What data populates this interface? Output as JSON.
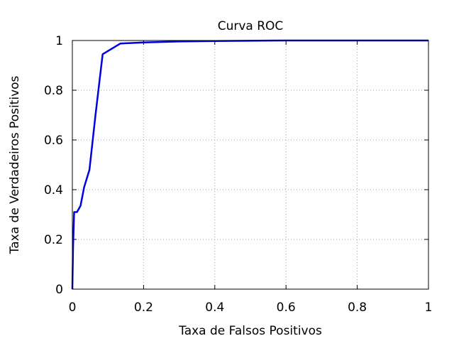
{
  "chart_data": {
    "type": "line",
    "title": "Curva ROC",
    "xlabel": "Taxa de Falsos Positivos",
    "ylabel": "Taxa de Verdadeiros Positivos",
    "xlim": [
      0,
      1
    ],
    "ylim": [
      0,
      1
    ],
    "xticks": [
      0,
      0.2,
      0.4,
      0.6,
      0.8,
      1
    ],
    "yticks": [
      0,
      0.2,
      0.4,
      0.6,
      0.8,
      1
    ],
    "xtick_labels": [
      "0",
      "0.2",
      "0.4",
      "0.6",
      "0.8",
      "1"
    ],
    "ytick_labels": [
      "0",
      "0.2",
      "0.4",
      "0.6",
      "0.8",
      "1"
    ],
    "grid": true,
    "series": [
      {
        "color": "#0000e0",
        "x": [
          0,
          0.002,
          0.005,
          0.013,
          0.023,
          0.033,
          0.048,
          0.065,
          0.085,
          0.135,
          0.2,
          0.3,
          0.4,
          0.6,
          1.0
        ],
        "y": [
          0,
          0.17,
          0.31,
          0.31,
          0.335,
          0.41,
          0.48,
          0.7,
          0.945,
          0.988,
          0.992,
          0.996,
          0.998,
          1.0,
          1.0
        ]
      }
    ]
  }
}
